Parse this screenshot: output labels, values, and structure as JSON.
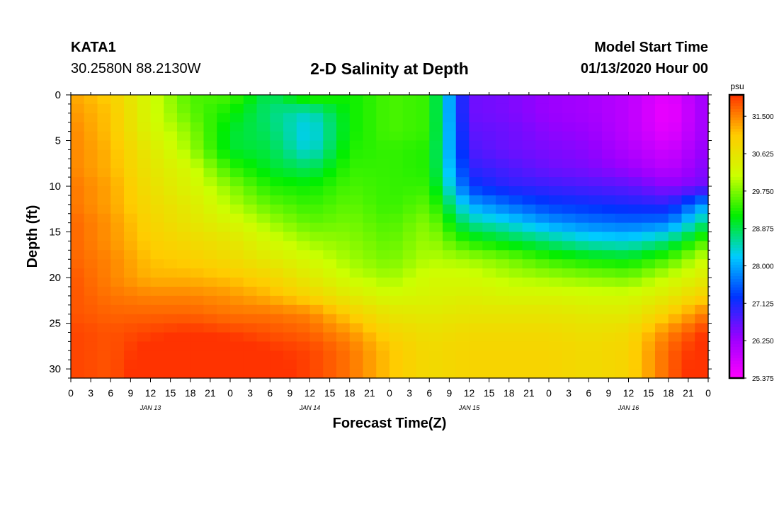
{
  "header": {
    "station": "KATA1",
    "coords": "30.2580N 88.2130W",
    "title": "2-D Salinity at Depth",
    "model_start_label": "Model Start Time",
    "model_start_date": "01/13/2020 Hour 00"
  },
  "colors": {
    "background": "#ffffff",
    "axis": "#000000",
    "colorbar_stops": [
      "#ff00ff",
      "#9900ff",
      "#0033ff",
      "#00ccff",
      "#00ee00",
      "#ccff00",
      "#ffcc00",
      "#ff3300"
    ]
  },
  "chart_data": {
    "type": "heatmap",
    "title": "2-D Salinity at Depth",
    "xlabel": "Forecast Time(Z)",
    "ylabel": "Depth (ft)",
    "x_tick_labels": [
      "0",
      "3",
      "6",
      "9",
      "12",
      "15",
      "18",
      "21",
      "0",
      "3",
      "6",
      "9",
      "12",
      "15",
      "18",
      "21",
      "0",
      "3",
      "6",
      "9",
      "12",
      "15",
      "18",
      "21",
      "0",
      "3",
      "6",
      "9",
      "12",
      "15",
      "18",
      "21",
      "0"
    ],
    "x_hours_range": [
      0,
      96
    ],
    "date_labels": [
      {
        "label": "JAN 13",
        "hour": 12
      },
      {
        "label": "JAN 14",
        "hour": 36
      },
      {
        "label": "JAN 15",
        "hour": 60
      },
      {
        "label": "JAN 16",
        "hour": 84
      }
    ],
    "y_ticks": [
      0,
      5,
      10,
      15,
      20,
      25,
      30
    ],
    "y_tick_labels": [
      "0",
      "5",
      "10",
      "15",
      "20",
      "25",
      "30"
    ],
    "ylim": [
      0,
      31
    ],
    "colorbar": {
      "unit": "psu",
      "min": 25.375,
      "max": 32.0,
      "tick_values": [
        31.5,
        30.625,
        29.75,
        28.875,
        28.0,
        27.125,
        26.25,
        25.375
      ],
      "tick_labels": [
        "31.500",
        "30.625",
        "29.750",
        "28.875",
        "28.000",
        "27.125",
        "26.250",
        "25.375"
      ]
    },
    "grid_hours": [
      0,
      6,
      12,
      18,
      24,
      30,
      36,
      42,
      48,
      54,
      60,
      66,
      72,
      78,
      84,
      90,
      96
    ],
    "grid_depths": [
      0,
      2,
      4,
      6,
      8,
      10,
      12,
      14,
      16,
      18,
      20,
      22,
      24,
      26,
      28,
      30
    ],
    "salinity_grid": [
      [
        31.3,
        31.0,
        30.2,
        29.5,
        29.5,
        28.8,
        29.5,
        29.2,
        29.5,
        29.4,
        26.6,
        26.5,
        26.3,
        26.2,
        26.0,
        25.6,
        26.3
      ],
      [
        31.4,
        31.1,
        30.2,
        29.6,
        29.2,
        28.7,
        28.4,
        29.2,
        29.5,
        29.4,
        26.6,
        26.5,
        26.3,
        26.2,
        26.0,
        25.5,
        26.3
      ],
      [
        31.5,
        31.1,
        30.3,
        29.8,
        29.0,
        28.8,
        28.2,
        29.2,
        29.5,
        29.4,
        26.7,
        26.6,
        26.4,
        26.3,
        26.0,
        25.6,
        26.3
      ],
      [
        31.5,
        31.2,
        30.5,
        29.9,
        29.0,
        28.9,
        28.3,
        29.3,
        29.4,
        29.3,
        26.8,
        26.6,
        26.5,
        26.4,
        26.1,
        25.8,
        26.4
      ],
      [
        31.5,
        31.2,
        30.6,
        30.2,
        29.4,
        29.0,
        28.8,
        29.4,
        29.4,
        29.3,
        27.0,
        26.8,
        26.6,
        26.5,
        26.3,
        26.0,
        26.5
      ],
      [
        31.6,
        31.3,
        30.7,
        30.3,
        29.8,
        29.3,
        29.2,
        29.5,
        29.4,
        29.4,
        27.3,
        27.0,
        26.9,
        26.8,
        26.7,
        26.4,
        26.6
      ],
      [
        31.6,
        31.3,
        30.8,
        30.5,
        30.0,
        29.6,
        29.4,
        29.6,
        29.4,
        29.6,
        28.0,
        27.6,
        27.3,
        27.2,
        27.1,
        27.0,
        28.0
      ],
      [
        31.7,
        31.4,
        30.9,
        30.6,
        30.3,
        29.9,
        29.6,
        29.7,
        29.5,
        29.8,
        28.6,
        28.3,
        27.9,
        27.7,
        27.6,
        27.7,
        28.8
      ],
      [
        31.7,
        31.4,
        31.0,
        30.8,
        30.6,
        30.2,
        29.9,
        29.8,
        29.6,
        29.9,
        29.3,
        29.0,
        28.7,
        28.4,
        28.3,
        28.7,
        29.6
      ],
      [
        31.7,
        31.5,
        31.1,
        31.0,
        30.8,
        30.5,
        30.2,
        29.9,
        29.7,
        30.0,
        29.9,
        29.7,
        29.4,
        29.2,
        29.1,
        29.5,
        30.2
      ],
      [
        31.8,
        31.5,
        31.2,
        31.2,
        31.1,
        30.9,
        30.5,
        30.1,
        29.9,
        30.2,
        30.2,
        30.0,
        29.9,
        29.8,
        29.7,
        30.1,
        30.5
      ],
      [
        31.8,
        31.6,
        31.5,
        31.5,
        31.4,
        31.2,
        30.9,
        30.5,
        30.2,
        30.3,
        30.4,
        30.3,
        30.3,
        30.2,
        30.2,
        30.5,
        31.0
      ],
      [
        31.8,
        31.7,
        31.7,
        31.7,
        31.6,
        31.6,
        31.5,
        31.0,
        30.6,
        30.5,
        30.6,
        30.6,
        30.6,
        30.5,
        30.5,
        31.0,
        31.6
      ],
      [
        31.9,
        31.8,
        31.9,
        32.0,
        31.9,
        31.8,
        31.7,
        31.4,
        30.9,
        30.7,
        30.8,
        30.8,
        30.8,
        30.7,
        30.8,
        31.5,
        32.0
      ],
      [
        31.9,
        31.8,
        32.1,
        32.2,
        32.2,
        32.0,
        31.9,
        31.6,
        31.1,
        30.8,
        30.9,
        30.9,
        30.9,
        30.8,
        30.9,
        31.7,
        32.2
      ],
      [
        31.9,
        31.8,
        32.2,
        32.3,
        32.3,
        32.1,
        31.9,
        31.6,
        31.1,
        30.8,
        30.9,
        30.9,
        30.9,
        30.8,
        30.9,
        31.7,
        32.3
      ]
    ]
  }
}
